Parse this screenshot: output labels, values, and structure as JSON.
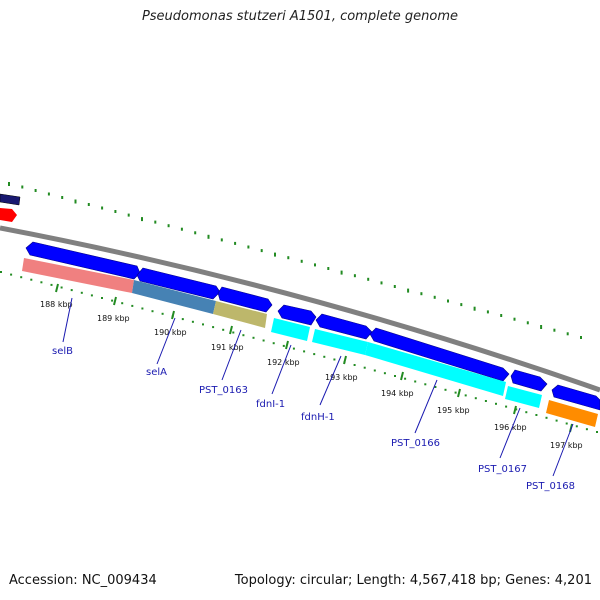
{
  "title": "Pseudomonas stutzeri A1501, complete genome",
  "footer": {
    "accession": "Accession: NC_009434",
    "summary": "Topology: circular; Length: 4,567,418 bp; Genes: 4,201"
  },
  "scale": {
    "ticks": [
      "188 kbp",
      "189 kbp",
      "190 kbp",
      "191 kbp",
      "192 kbp",
      "193 kbp",
      "194 kbp",
      "195 kbp",
      "196 kbp",
      "197 kbp"
    ]
  },
  "genes": [
    {
      "label": "selB",
      "color": "#f08080"
    },
    {
      "label": "selA",
      "color": "#4682b4"
    },
    {
      "label": "PST_0163",
      "color": "#bdb76b"
    },
    {
      "label": "fdnI-1",
      "color": "#00ffff"
    },
    {
      "label": "fdnH-1",
      "color": "#00ffff"
    },
    {
      "label": "PST_0166",
      "color": "#00ffff"
    },
    {
      "label": "PST_0167",
      "color": "#00ffff"
    },
    {
      "label": "PST_0168",
      "color": "#ff8c00"
    }
  ],
  "colors": {
    "backbone": "#808080",
    "cds_arrow": "#0000ff",
    "dot_track": "#228b22",
    "red_feature": "#ff0000",
    "navy_feature": "#191970"
  }
}
